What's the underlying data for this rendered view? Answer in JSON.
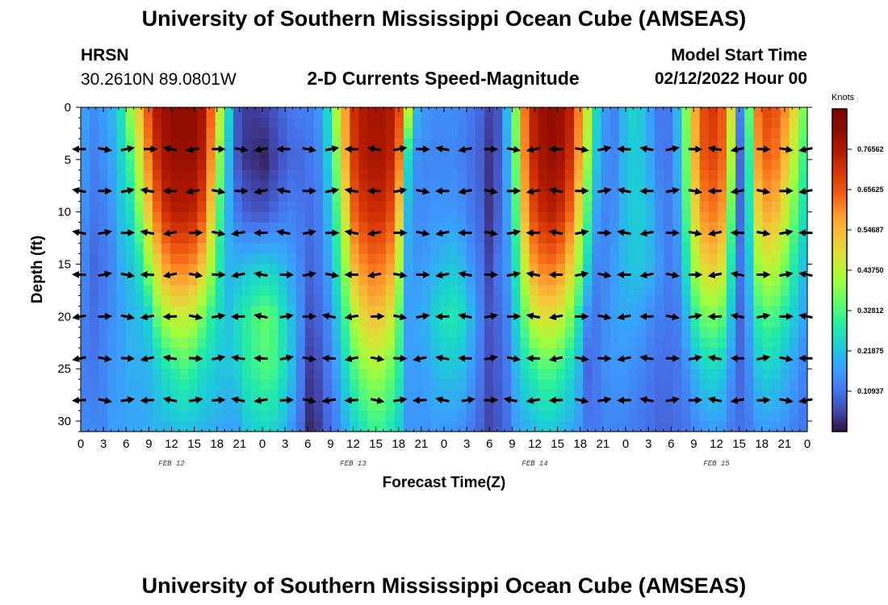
{
  "header": {
    "title_top": "University of Southern Mississippi Ocean Cube (AMSEAS)",
    "title_bottom": "University of Southern Mississippi Ocean Cube (AMSEAS)",
    "station": "HRSN",
    "location": "30.2610N  89.0801W",
    "model_label": "Model Start Time",
    "model_time": "02/12/2022 Hour 00"
  },
  "chart_data": {
    "type": "heatmap",
    "title": "2-D Currents Speed-Magnitude",
    "xlabel": "Forecast Time(Z)",
    "ylabel": "Depth (ft)",
    "x_range_hours": [
      0,
      96
    ],
    "y_range_ft": [
      0,
      31
    ],
    "x_tick_labels": [
      "0",
      "3",
      "6",
      "9",
      "12",
      "15",
      "18",
      "21",
      "0",
      "3",
      "6",
      "9",
      "12",
      "15",
      "18",
      "21",
      "0",
      "3",
      "6",
      "9",
      "12",
      "15",
      "18",
      "21",
      "0",
      "3",
      "6",
      "9",
      "12",
      "15",
      "18",
      "21",
      "0"
    ],
    "y_ticks": [
      0,
      5,
      10,
      15,
      20,
      25,
      30
    ],
    "y_tick_labels": [
      "0",
      "5",
      "10",
      "15",
      "20",
      "25",
      "30"
    ],
    "day_labels": [
      {
        "label": "FEB 12",
        "hour": 12
      },
      {
        "label": "FEB 13",
        "hour": 36
      },
      {
        "label": "FEB 14",
        "hour": 60
      },
      {
        "label": "FEB 15",
        "hour": 84
      }
    ],
    "colorbar": {
      "units": "Knots",
      "tick_labels": [
        "0.76562",
        "0.65625",
        "0.54687",
        "0.43750",
        "0.32812",
        "0.21875",
        "0.10937"
      ],
      "tick_values": [
        0.76562,
        0.65625,
        0.54687,
        0.4375,
        0.32812,
        0.21875,
        0.10937
      ],
      "range": [
        0,
        0.875
      ]
    },
    "speed_profiles": [
      {
        "t": 0,
        "s": [
          0.17,
          0.16,
          0.15,
          0.14,
          0.13,
          0.13,
          0.14
        ]
      },
      {
        "t": 1,
        "s": [
          0.15,
          0.13,
          0.12,
          0.1,
          0.11,
          0.12,
          0.14
        ]
      },
      {
        "t": 2,
        "s": [
          0.17,
          0.15,
          0.13,
          0.12,
          0.13,
          0.14,
          0.14
        ]
      },
      {
        "t": 3,
        "s": [
          0.2,
          0.18,
          0.16,
          0.14,
          0.15,
          0.16,
          0.17
        ]
      },
      {
        "t": 4,
        "s": [
          0.27,
          0.24,
          0.22,
          0.19,
          0.17,
          0.17,
          0.17
        ]
      },
      {
        "t": 5,
        "s": [
          0.4,
          0.32,
          0.26,
          0.22,
          0.2,
          0.19,
          0.18
        ]
      },
      {
        "t": 6,
        "s": [
          0.52,
          0.45,
          0.37,
          0.27,
          0.21,
          0.19,
          0.18
        ]
      },
      {
        "t": 7,
        "s": [
          0.66,
          0.6,
          0.52,
          0.39,
          0.24,
          0.2,
          0.19
        ]
      },
      {
        "t": 8,
        "s": [
          0.76,
          0.72,
          0.64,
          0.5,
          0.35,
          0.23,
          0.2
        ]
      },
      {
        "t": 9,
        "s": [
          0.8,
          0.78,
          0.72,
          0.58,
          0.42,
          0.27,
          0.21
        ]
      },
      {
        "t": 10,
        "s": [
          0.82,
          0.8,
          0.75,
          0.62,
          0.45,
          0.3,
          0.22
        ]
      },
      {
        "t": 11,
        "s": [
          0.82,
          0.8,
          0.75,
          0.62,
          0.45,
          0.32,
          0.23
        ]
      },
      {
        "t": 12,
        "s": [
          0.82,
          0.8,
          0.74,
          0.6,
          0.43,
          0.3,
          0.22
        ]
      },
      {
        "t": 13,
        "s": [
          0.78,
          0.75,
          0.68,
          0.53,
          0.37,
          0.26,
          0.21
        ]
      },
      {
        "t": 14,
        "s": [
          0.65,
          0.6,
          0.52,
          0.42,
          0.3,
          0.24,
          0.2
        ]
      },
      {
        "t": 15,
        "s": [
          0.45,
          0.38,
          0.32,
          0.28,
          0.25,
          0.22,
          0.19
        ]
      },
      {
        "t": 16,
        "s": [
          0.25,
          0.2,
          0.19,
          0.2,
          0.22,
          0.22,
          0.18
        ]
      },
      {
        "t": 17,
        "s": [
          0.08,
          0.08,
          0.12,
          0.2,
          0.26,
          0.24,
          0.19
        ]
      },
      {
        "t": 18,
        "s": [
          0.05,
          0.04,
          0.09,
          0.21,
          0.3,
          0.29,
          0.23
        ]
      },
      {
        "t": 19,
        "s": [
          0.05,
          0.03,
          0.08,
          0.22,
          0.33,
          0.31,
          0.25
        ]
      },
      {
        "t": 20,
        "s": [
          0.06,
          0.02,
          0.08,
          0.23,
          0.35,
          0.33,
          0.26
        ]
      },
      {
        "t": 21,
        "s": [
          0.08,
          0.05,
          0.1,
          0.22,
          0.33,
          0.32,
          0.25
        ]
      },
      {
        "t": 22,
        "s": [
          0.1,
          0.08,
          0.12,
          0.2,
          0.27,
          0.27,
          0.22
        ]
      },
      {
        "t": 23,
        "s": [
          0.12,
          0.1,
          0.13,
          0.17,
          0.21,
          0.21,
          0.17
        ]
      },
      {
        "t": 24,
        "s": [
          0.13,
          0.1,
          0.12,
          0.14,
          0.15,
          0.13,
          0.11
        ]
      },
      {
        "t": 25,
        "s": [
          0.13,
          0.12,
          0.11,
          0.1,
          0.08,
          0.05,
          0.03
        ]
      },
      {
        "t": 26,
        "s": [
          0.16,
          0.14,
          0.13,
          0.12,
          0.1,
          0.07,
          0.05
        ]
      },
      {
        "t": 27,
        "s": [
          0.25,
          0.22,
          0.2,
          0.17,
          0.14,
          0.12,
          0.1
        ]
      },
      {
        "t": 28,
        "s": [
          0.42,
          0.37,
          0.32,
          0.27,
          0.22,
          0.17,
          0.14
        ]
      },
      {
        "t": 29,
        "s": [
          0.58,
          0.55,
          0.48,
          0.4,
          0.32,
          0.25,
          0.2
        ]
      },
      {
        "t": 30,
        "s": [
          0.72,
          0.7,
          0.65,
          0.55,
          0.43,
          0.33,
          0.25
        ]
      },
      {
        "t": 31,
        "s": [
          0.76,
          0.75,
          0.7,
          0.6,
          0.5,
          0.38,
          0.29
        ]
      },
      {
        "t": 32,
        "s": [
          0.78,
          0.77,
          0.72,
          0.63,
          0.53,
          0.41,
          0.32
        ]
      },
      {
        "t": 33,
        "s": [
          0.78,
          0.77,
          0.72,
          0.62,
          0.52,
          0.4,
          0.32
        ]
      },
      {
        "t": 34,
        "s": [
          0.76,
          0.74,
          0.68,
          0.58,
          0.47,
          0.36,
          0.29
        ]
      },
      {
        "t": 35,
        "s": [
          0.68,
          0.62,
          0.52,
          0.42,
          0.34,
          0.29,
          0.24
        ]
      },
      {
        "t": 36,
        "s": [
          0.45,
          0.25,
          0.2,
          0.18,
          0.17,
          0.17,
          0.16
        ]
      },
      {
        "t": 37,
        "s": [
          0.2,
          0.15,
          0.15,
          0.16,
          0.18,
          0.17,
          0.16
        ]
      },
      {
        "t": 38,
        "s": [
          0.16,
          0.14,
          0.15,
          0.17,
          0.2,
          0.18,
          0.16
        ]
      },
      {
        "t": 39,
        "s": [
          0.15,
          0.14,
          0.16,
          0.19,
          0.24,
          0.2,
          0.17
        ]
      },
      {
        "t": 40,
        "s": [
          0.15,
          0.14,
          0.16,
          0.21,
          0.27,
          0.22,
          0.17
        ]
      },
      {
        "t": 41,
        "s": [
          0.15,
          0.14,
          0.16,
          0.22,
          0.28,
          0.22,
          0.17
        ]
      },
      {
        "t": 42,
        "s": [
          0.14,
          0.13,
          0.15,
          0.2,
          0.26,
          0.21,
          0.16
        ]
      },
      {
        "t": 43,
        "s": [
          0.12,
          0.11,
          0.12,
          0.16,
          0.2,
          0.17,
          0.13
        ]
      },
      {
        "t": 44,
        "s": [
          0.1,
          0.09,
          0.1,
          0.12,
          0.14,
          0.12,
          0.1
        ]
      },
      {
        "t": 45,
        "s": [
          0.06,
          0.04,
          0.04,
          0.06,
          0.08,
          0.07,
          0.06
        ]
      },
      {
        "t": 46,
        "s": [
          0.08,
          0.08,
          0.09,
          0.12,
          0.1,
          0.09,
          0.08
        ]
      },
      {
        "t": 47,
        "s": [
          0.2,
          0.18,
          0.17,
          0.16,
          0.14,
          0.12,
          0.11
        ]
      },
      {
        "t": 48,
        "s": [
          0.38,
          0.36,
          0.33,
          0.28,
          0.24,
          0.2,
          0.17
        ]
      },
      {
        "t": 49,
        "s": [
          0.62,
          0.6,
          0.55,
          0.46,
          0.35,
          0.26,
          0.2
        ]
      },
      {
        "t": 50,
        "s": [
          0.75,
          0.73,
          0.68,
          0.58,
          0.45,
          0.3,
          0.22
        ]
      },
      {
        "t": 51,
        "s": [
          0.8,
          0.78,
          0.73,
          0.62,
          0.48,
          0.33,
          0.24
        ]
      },
      {
        "t": 52,
        "s": [
          0.82,
          0.8,
          0.75,
          0.63,
          0.48,
          0.33,
          0.24
        ]
      },
      {
        "t": 53,
        "s": [
          0.8,
          0.78,
          0.72,
          0.6,
          0.45,
          0.3,
          0.22
        ]
      },
      {
        "t": 54,
        "s": [
          0.75,
          0.72,
          0.65,
          0.52,
          0.38,
          0.26,
          0.2
        ]
      },
      {
        "t": 55,
        "s": [
          0.62,
          0.58,
          0.5,
          0.4,
          0.28,
          0.2,
          0.17
        ]
      },
      {
        "t": 56,
        "s": [
          0.45,
          0.4,
          0.33,
          0.25,
          0.15,
          0.1,
          0.12
        ]
      },
      {
        "t": 57,
        "s": [
          0.25,
          0.22,
          0.18,
          0.14,
          0.12,
          0.12,
          0.12
        ]
      },
      {
        "t": 58,
        "s": [
          0.16,
          0.15,
          0.14,
          0.14,
          0.15,
          0.15,
          0.14
        ]
      },
      {
        "t": 59,
        "s": [
          0.14,
          0.14,
          0.15,
          0.17,
          0.17,
          0.16,
          0.14
        ]
      },
      {
        "t": 60,
        "s": [
          0.2,
          0.2,
          0.2,
          0.2,
          0.18,
          0.16,
          0.14
        ]
      },
      {
        "t": 61,
        "s": [
          0.24,
          0.23,
          0.23,
          0.22,
          0.18,
          0.15,
          0.13
        ]
      },
      {
        "t": 62,
        "s": [
          0.22,
          0.22,
          0.23,
          0.22,
          0.17,
          0.14,
          0.12
        ]
      },
      {
        "t": 63,
        "s": [
          0.17,
          0.18,
          0.2,
          0.2,
          0.15,
          0.12,
          0.11
        ]
      },
      {
        "t": 64,
        "s": [
          0.12,
          0.13,
          0.15,
          0.16,
          0.13,
          0.11,
          0.1
        ]
      },
      {
        "t": 65,
        "s": [
          0.12,
          0.12,
          0.13,
          0.13,
          0.12,
          0.11,
          0.1
        ]
      },
      {
        "t": 66,
        "s": [
          0.2,
          0.19,
          0.17,
          0.15,
          0.13,
          0.12,
          0.11
        ]
      },
      {
        "t": 67,
        "s": [
          0.38,
          0.36,
          0.33,
          0.27,
          0.2,
          0.15,
          0.12
        ]
      },
      {
        "t": 68,
        "s": [
          0.56,
          0.55,
          0.5,
          0.42,
          0.3,
          0.2,
          0.15
        ]
      },
      {
        "t": 69,
        "s": [
          0.68,
          0.66,
          0.6,
          0.5,
          0.36,
          0.24,
          0.17
        ]
      },
      {
        "t": 70,
        "s": [
          0.7,
          0.68,
          0.62,
          0.52,
          0.37,
          0.25,
          0.18
        ]
      },
      {
        "t": 71,
        "s": [
          0.66,
          0.64,
          0.58,
          0.48,
          0.34,
          0.23,
          0.17
        ]
      },
      {
        "t": 72,
        "s": [
          0.48,
          0.42,
          0.35,
          0.28,
          0.22,
          0.16,
          0.13
        ]
      },
      {
        "t": 73,
        "s": [
          0.14,
          0.1,
          0.1,
          0.12,
          0.1,
          0.1,
          0.11
        ]
      },
      {
        "t": 74,
        "s": [
          0.35,
          0.3,
          0.27,
          0.22,
          0.18,
          0.15,
          0.13
        ]
      },
      {
        "t": 75,
        "s": [
          0.62,
          0.58,
          0.5,
          0.4,
          0.3,
          0.22,
          0.17
        ]
      },
      {
        "t": 76,
        "s": [
          0.68,
          0.64,
          0.56,
          0.45,
          0.33,
          0.24,
          0.18
        ]
      },
      {
        "t": 77,
        "s": [
          0.66,
          0.62,
          0.54,
          0.43,
          0.32,
          0.23,
          0.17
        ]
      },
      {
        "t": 78,
        "s": [
          0.6,
          0.54,
          0.46,
          0.37,
          0.28,
          0.2,
          0.16
        ]
      },
      {
        "t": 79,
        "s": [
          0.5,
          0.43,
          0.36,
          0.29,
          0.23,
          0.17,
          0.14
        ]
      },
      {
        "t": 80,
        "s": [
          0.38,
          0.32,
          0.27,
          0.22,
          0.18,
          0.14,
          0.12
        ]
      }
    ]
  }
}
